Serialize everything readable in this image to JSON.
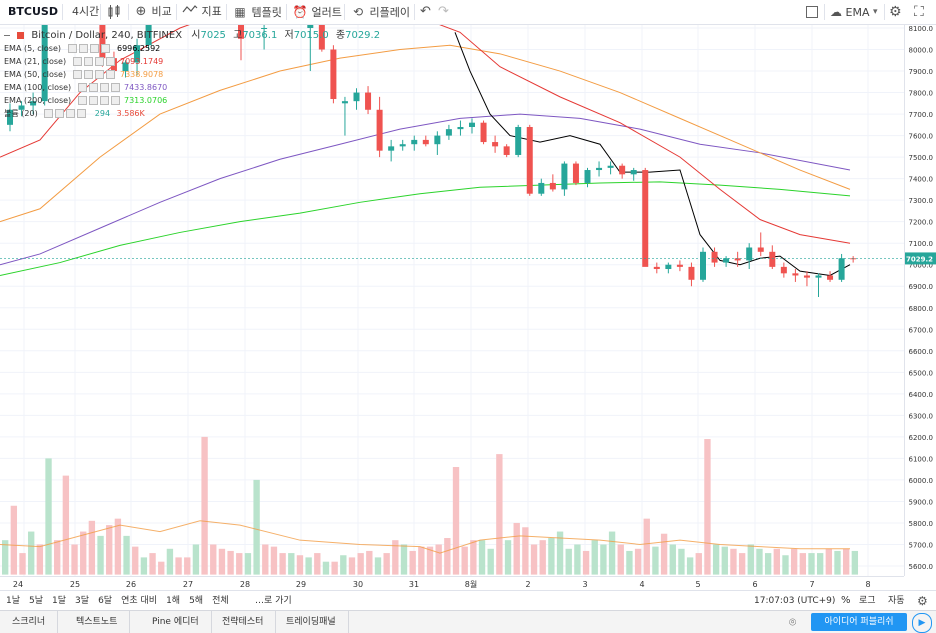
{
  "toolbar": {
    "symbol": "BTCUSD",
    "interval": "4시간",
    "compare": "비교",
    "indicators": "지표",
    "templates": "템플릿",
    "alerts": "얼러트",
    "replay": "리플레이",
    "layout_name": "EMA",
    "icons": [
      "candles-icon",
      "compare-plus-icon",
      "indicator-wave-icon",
      "templates-grid-icon",
      "alert-clock-icon",
      "replay-icon",
      "undo-icon",
      "redo-icon",
      "fullscreen-icon",
      "cloud-icon",
      "chevron-down-icon",
      "settings-gear-icon",
      "camera-icon"
    ]
  },
  "legend": {
    "title": {
      "symbol": "Bitcoin / Dollar, 240, BITFINEX",
      "o_label": "시",
      "o": "7025",
      "h_label": "고",
      "h": "7036.1",
      "l_label": "저",
      "l": "7015.0",
      "c_label": "종",
      "c": "7029.2"
    },
    "studies": [
      {
        "name": "EMA (5, close)",
        "value": "6996.2592",
        "color": "#000000"
      },
      {
        "name": "EMA (21, close)",
        "value": "7093.1749",
        "color": "#e53935"
      },
      {
        "name": "EMA (50, close)",
        "value": "7338.9078",
        "color": "#f39c43"
      },
      {
        "name": "EMA (100, close)",
        "value": "7433.8670",
        "color": "#7e57c2"
      },
      {
        "name": "EMA (200, close)",
        "value": "7313.0706",
        "color": "#2bd32b"
      },
      {
        "name": "볼륨 (20)",
        "value": "294",
        "value2": "3.586K",
        "color": "#26a69a"
      }
    ]
  },
  "price_axis": {
    "labels": [
      "8100.0",
      "8000.0",
      "7900.0",
      "7800.0",
      "7700.0",
      "7600.0",
      "7500.0",
      "7400.0",
      "7300.0",
      "7200.0",
      "7100.0",
      "7000.0",
      "6900.0",
      "6800.0",
      "6700.0",
      "6600.0",
      "6500.0",
      "6400.0",
      "6300.0",
      "6200.0",
      "6100.0",
      "6000.0",
      "5900.0",
      "5800.0",
      "5700.0",
      "5600.0"
    ],
    "last_price": "7029.2",
    "last_price_color": "#26a69a"
  },
  "time_axis": {
    "labels": [
      "24",
      "25",
      "26",
      "27",
      "28",
      "29",
      "30",
      "31",
      "8월",
      "2",
      "3",
      "4",
      "5",
      "6",
      "7",
      "8"
    ]
  },
  "range_bar": {
    "ranges": [
      "1날",
      "5날",
      "1달",
      "3달",
      "6달",
      "연초 대비",
      "1해",
      "5해",
      "전체"
    ],
    "goto": "…로 가기",
    "clock": "17:07:03 (UTC+9)",
    "percent": "%",
    "log": "로그",
    "auto": "자동"
  },
  "bottom_tabs": {
    "tabs": [
      "스크리너",
      "텍스트노트",
      "Pine 에디터",
      "전략테스터",
      "트레이딩패널"
    ],
    "idea_button": "아이디어 퍼블리쉬"
  },
  "chart_data": {
    "type": "candlestick",
    "symbol": "BTCUSD",
    "interval": "240",
    "exchange": "BITFINEX",
    "price_range": [
      5550,
      8150
    ],
    "ema_labels": [
      "EMA 5",
      "EMA 21",
      "EMA 50",
      "EMA 100",
      "EMA 200"
    ],
    "candles": [
      [
        0,
        7650,
        7750,
        7620,
        7720
      ],
      [
        1,
        7720,
        7760,
        7690,
        7740
      ],
      [
        2,
        7740,
        7800,
        7700,
        7760
      ],
      [
        3,
        7760,
        8200,
        7740,
        8150
      ],
      [
        8,
        8150,
        8220,
        7920,
        7960
      ],
      [
        9,
        7960,
        7990,
        7880,
        7900
      ],
      [
        10,
        7900,
        7950,
        7870,
        7940
      ],
      [
        11,
        7940,
        8050,
        7880,
        8020
      ],
      [
        12,
        8020,
        8200,
        8000,
        8150
      ],
      [
        20,
        8150,
        8200,
        7950,
        8050
      ],
      [
        22,
        8100,
        8300,
        8000,
        8100
      ],
      [
        26,
        8100,
        8120,
        7900,
        8120
      ],
      [
        27,
        8120,
        8150,
        7990,
        8000
      ],
      [
        28,
        8000,
        8020,
        7750,
        7770
      ],
      [
        29,
        7750,
        7780,
        7600,
        7760
      ],
      [
        30,
        7760,
        7820,
        7720,
        7800
      ],
      [
        31,
        7800,
        7830,
        7700,
        7720
      ],
      [
        32,
        7720,
        7780,
        7500,
        7530
      ],
      [
        33,
        7530,
        7580,
        7480,
        7550
      ],
      [
        34,
        7550,
        7580,
        7530,
        7560
      ],
      [
        35,
        7560,
        7600,
        7530,
        7580
      ],
      [
        36,
        7580,
        7600,
        7550,
        7560
      ],
      [
        37,
        7560,
        7620,
        7510,
        7600
      ],
      [
        38,
        7600,
        7650,
        7580,
        7630
      ],
      [
        39,
        7630,
        7670,
        7600,
        7640
      ],
      [
        40,
        7640,
        7680,
        7610,
        7660
      ],
      [
        41,
        7660,
        7670,
        7560,
        7570
      ],
      [
        42,
        7570,
        7600,
        7520,
        7550
      ],
      [
        43,
        7550,
        7560,
        7500,
        7510
      ],
      [
        44,
        7510,
        7650,
        7500,
        7640
      ],
      [
        45,
        7640,
        7650,
        7320,
        7330
      ],
      [
        46,
        7330,
        7400,
        7320,
        7380
      ],
      [
        47,
        7380,
        7420,
        7340,
        7350
      ],
      [
        48,
        7350,
        7480,
        7320,
        7470
      ],
      [
        49,
        7470,
        7480,
        7370,
        7380
      ],
      [
        50,
        7380,
        7450,
        7360,
        7440
      ],
      [
        51,
        7440,
        7480,
        7410,
        7450
      ],
      [
        52,
        7450,
        7480,
        7420,
        7460
      ],
      [
        53,
        7460,
        7470,
        7400,
        7420
      ],
      [
        54,
        7420,
        7450,
        7390,
        7440
      ],
      [
        55,
        7440,
        7450,
        7000,
        6990
      ],
      [
        56,
        6990,
        7010,
        6960,
        6980
      ],
      [
        57,
        6980,
        7010,
        6960,
        7000
      ],
      [
        58,
        7000,
        7020,
        6970,
        6990
      ],
      [
        59,
        6990,
        7010,
        6900,
        6930
      ],
      [
        60,
        6930,
        7080,
        6920,
        7060
      ],
      [
        61,
        7060,
        7080,
        6990,
        7010
      ],
      [
        62,
        7010,
        7040,
        6990,
        7030
      ],
      [
        63,
        7030,
        7060,
        6990,
        7020
      ],
      [
        64,
        7020,
        7100,
        6980,
        7080
      ],
      [
        65,
        7080,
        7150,
        7040,
        7060
      ],
      [
        66,
        7060,
        7090,
        6980,
        6990
      ],
      [
        67,
        6990,
        7010,
        6940,
        6960
      ],
      [
        68,
        6960,
        6980,
        6920,
        6950
      ],
      [
        69,
        6950,
        6970,
        6900,
        6940
      ],
      [
        70,
        6940,
        6960,
        6850,
        6950
      ],
      [
        71,
        6950,
        6970,
        6920,
        6930
      ],
      [
        72,
        6930,
        7050,
        6920,
        7030
      ],
      [
        73,
        7030,
        7040,
        7010,
        7029
      ]
    ],
    "volume": [
      [
        0,
        5720,
        "up"
      ],
      [
        1,
        5880,
        "down"
      ],
      [
        2,
        5660,
        "down"
      ],
      [
        3,
        5760,
        "up"
      ],
      [
        4,
        5700,
        "down"
      ],
      [
        5,
        6100,
        "up"
      ],
      [
        6,
        5720,
        "down"
      ],
      [
        7,
        6020,
        "down"
      ],
      [
        8,
        5700,
        "down"
      ],
      [
        9,
        5760,
        "down"
      ],
      [
        10,
        5810,
        "down"
      ],
      [
        11,
        5740,
        "up"
      ],
      [
        12,
        5790,
        "down"
      ],
      [
        13,
        5820,
        "down"
      ],
      [
        14,
        5740,
        "up"
      ],
      [
        15,
        5690,
        "down"
      ],
      [
        16,
        5640,
        "up"
      ],
      [
        17,
        5660,
        "down"
      ],
      [
        18,
        5620,
        "down"
      ],
      [
        19,
        5680,
        "up"
      ],
      [
        20,
        5640,
        "down"
      ],
      [
        21,
        5640,
        "down"
      ],
      [
        22,
        5700,
        "up"
      ],
      [
        23,
        6200,
        "down"
      ],
      [
        24,
        5700,
        "down"
      ],
      [
        25,
        5680,
        "down"
      ],
      [
        26,
        5670,
        "down"
      ],
      [
        27,
        5660,
        "down"
      ],
      [
        28,
        5660,
        "up"
      ],
      [
        29,
        6000,
        "up"
      ],
      [
        30,
        5700,
        "down"
      ],
      [
        31,
        5690,
        "down"
      ],
      [
        32,
        5660,
        "down"
      ],
      [
        33,
        5660,
        "up"
      ],
      [
        34,
        5650,
        "down"
      ],
      [
        35,
        5640,
        "up"
      ],
      [
        36,
        5660,
        "down"
      ],
      [
        37,
        5620,
        "up"
      ],
      [
        38,
        5620,
        "down"
      ],
      [
        39,
        5650,
        "up"
      ],
      [
        40,
        5640,
        "down"
      ],
      [
        41,
        5660,
        "down"
      ],
      [
        42,
        5670,
        "down"
      ],
      [
        43,
        5640,
        "up"
      ],
      [
        44,
        5660,
        "down"
      ],
      [
        45,
        5720,
        "down"
      ],
      [
        46,
        5700,
        "up"
      ],
      [
        47,
        5670,
        "down"
      ],
      [
        48,
        5690,
        "down"
      ],
      [
        49,
        5690,
        "down"
      ],
      [
        50,
        5700,
        "down"
      ],
      [
        51,
        5730,
        "down"
      ],
      [
        52,
        6060,
        "down"
      ],
      [
        53,
        5690,
        "down"
      ],
      [
        54,
        5720,
        "down"
      ],
      [
        55,
        5720,
        "up"
      ],
      [
        56,
        5680,
        "up"
      ],
      [
        57,
        6120,
        "down"
      ],
      [
        58,
        5720,
        "up"
      ],
      [
        59,
        5800,
        "down"
      ],
      [
        60,
        5780,
        "down"
      ],
      [
        61,
        5700,
        "down"
      ],
      [
        62,
        5720,
        "down"
      ],
      [
        63,
        5730,
        "up"
      ],
      [
        64,
        5760,
        "up"
      ],
      [
        65,
        5680,
        "up"
      ],
      [
        66,
        5700,
        "up"
      ],
      [
        67,
        5670,
        "down"
      ],
      [
        68,
        5720,
        "up"
      ],
      [
        69,
        5700,
        "up"
      ],
      [
        70,
        5760,
        "up"
      ],
      [
        71,
        5700,
        "down"
      ],
      [
        72,
        5670,
        "up"
      ],
      [
        73,
        5680,
        "down"
      ],
      [
        74,
        5820,
        "down"
      ],
      [
        75,
        5690,
        "up"
      ],
      [
        76,
        5750,
        "down"
      ],
      [
        77,
        5700,
        "up"
      ],
      [
        78,
        5680,
        "up"
      ],
      [
        79,
        5640,
        "up"
      ],
      [
        80,
        5660,
        "down"
      ],
      [
        81,
        6190,
        "down"
      ],
      [
        82,
        5700,
        "up"
      ],
      [
        83,
        5690,
        "up"
      ],
      [
        84,
        5680,
        "down"
      ],
      [
        85,
        5660,
        "down"
      ],
      [
        86,
        5700,
        "up"
      ],
      [
        87,
        5680,
        "up"
      ],
      [
        88,
        5660,
        "up"
      ],
      [
        89,
        5680,
        "down"
      ],
      [
        90,
        5650,
        "up"
      ],
      [
        91,
        5680,
        "down"
      ],
      [
        92,
        5660,
        "down"
      ],
      [
        93,
        5660,
        "up"
      ],
      [
        94,
        5660,
        "up"
      ],
      [
        95,
        5680,
        "down"
      ],
      [
        96,
        5670,
        "up"
      ],
      [
        97,
        5680,
        "down"
      ],
      [
        98,
        5670,
        "up"
      ]
    ]
  }
}
